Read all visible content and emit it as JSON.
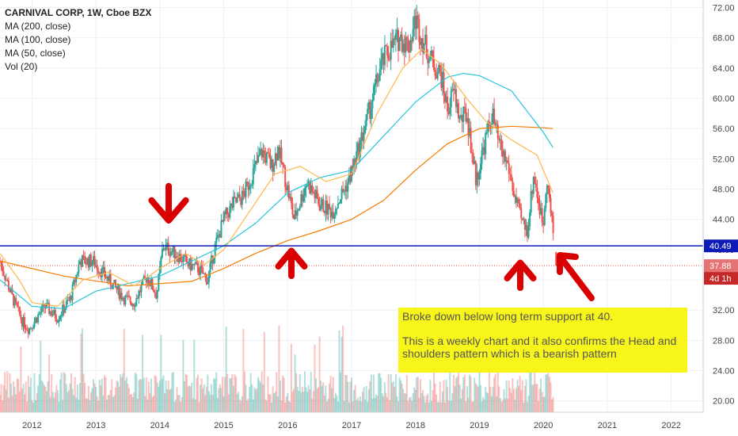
{
  "chart_data": {
    "type": "candlestick",
    "title": "CARNIVAL CORP, 1W, Cboe BZX",
    "indicators": [
      "MA (200, close)",
      "MA (100, close)",
      "MA (50, close)",
      "Vol (20)"
    ],
    "x_ticks": [
      "2012",
      "2013",
      "2014",
      "2015",
      "2016",
      "2017",
      "2018",
      "2019",
      "2020",
      "2021",
      "2022"
    ],
    "y_ticks": [
      20,
      24,
      28,
      32,
      36,
      40,
      44,
      48,
      52,
      56,
      60,
      64,
      68,
      72
    ],
    "ylim": [
      18.5,
      73
    ],
    "xlim": [
      2011.5,
      2022.5
    ],
    "grid": true,
    "support_level": 40.49,
    "last_price": 37.88,
    "countdown": "4d 1h",
    "price_path": [
      [
        2011.5,
        38.5
      ],
      [
        2011.7,
        33.5
      ],
      [
        2011.85,
        30.5
      ],
      [
        2011.95,
        29.5
      ],
      [
        2012.2,
        32.5
      ],
      [
        2012.4,
        31
      ],
      [
        2012.6,
        33.5
      ],
      [
        2012.75,
        38.5
      ],
      [
        2012.95,
        38.5
      ],
      [
        2013.2,
        36
      ],
      [
        2013.45,
        33.5
      ],
      [
        2013.6,
        33
      ],
      [
        2013.8,
        36.5
      ],
      [
        2013.95,
        34
      ],
      [
        2014.05,
        40.5
      ],
      [
        2014.25,
        39.5
      ],
      [
        2014.45,
        38
      ],
      [
        2014.6,
        37.5
      ],
      [
        2014.75,
        36
      ],
      [
        2014.85,
        40
      ],
      [
        2015.0,
        44
      ],
      [
        2015.15,
        46
      ],
      [
        2015.3,
        47
      ],
      [
        2015.45,
        50
      ],
      [
        2015.6,
        53
      ],
      [
        2015.75,
        51
      ],
      [
        2015.85,
        53.5
      ],
      [
        2016.0,
        48
      ],
      [
        2016.1,
        44
      ],
      [
        2016.3,
        49
      ],
      [
        2016.5,
        46
      ],
      [
        2016.7,
        45
      ],
      [
        2016.95,
        49
      ],
      [
        2017.1,
        53
      ],
      [
        2017.3,
        59
      ],
      [
        2017.45,
        64
      ],
      [
        2017.55,
        66
      ],
      [
        2017.75,
        68
      ],
      [
        2017.9,
        67
      ],
      [
        2018.0,
        70.5
      ],
      [
        2018.1,
        68
      ],
      [
        2018.25,
        65
      ],
      [
        2018.4,
        63
      ],
      [
        2018.5,
        58.5
      ],
      [
        2018.6,
        61
      ],
      [
        2018.7,
        57
      ],
      [
        2018.8,
        58
      ],
      [
        2018.95,
        49
      ],
      [
        2019.05,
        53
      ],
      [
        2019.2,
        58
      ],
      [
        2019.3,
        54
      ],
      [
        2019.45,
        51
      ],
      [
        2019.55,
        47
      ],
      [
        2019.65,
        44
      ],
      [
        2019.75,
        42.5
      ],
      [
        2019.85,
        50
      ],
      [
        2019.95,
        45
      ],
      [
        2020.0,
        43.5
      ],
      [
        2020.05,
        50
      ],
      [
        2020.12,
        44.5
      ],
      [
        2020.16,
        42
      ]
    ],
    "ma_200": [
      [
        2011.5,
        38.5
      ],
      [
        2012.5,
        36.5
      ],
      [
        2013.5,
        35.2
      ],
      [
        2014.5,
        35.8
      ],
      [
        2015.0,
        37.5
      ],
      [
        2015.5,
        39.5
      ],
      [
        2016.0,
        41.2
      ],
      [
        2016.5,
        42.5
      ],
      [
        2017.0,
        44
      ],
      [
        2017.5,
        46.5
      ],
      [
        2018.0,
        50.5
      ],
      [
        2018.5,
        54
      ],
      [
        2019.0,
        56
      ],
      [
        2019.5,
        56.3
      ],
      [
        2020.0,
        56.1
      ],
      [
        2020.15,
        56
      ]
    ],
    "ma_100": [
      [
        2011.5,
        36
      ],
      [
        2012.0,
        32.5
      ],
      [
        2012.5,
        32.2
      ],
      [
        2013.0,
        34.5
      ],
      [
        2013.5,
        35.5
      ],
      [
        2014.0,
        36.5
      ],
      [
        2014.5,
        38.5
      ],
      [
        2015.0,
        40.5
      ],
      [
        2015.5,
        43.5
      ],
      [
        2016.0,
        47.5
      ],
      [
        2016.5,
        49.5
      ],
      [
        2017.0,
        50.5
      ],
      [
        2017.5,
        55
      ],
      [
        2018.0,
        59.5
      ],
      [
        2018.5,
        62.8
      ],
      [
        2018.75,
        63.3
      ],
      [
        2019.0,
        63
      ],
      [
        2019.5,
        61
      ],
      [
        2020.0,
        55.5
      ],
      [
        2020.15,
        53.5
      ]
    ],
    "ma_50": [
      [
        2011.5,
        39.5
      ],
      [
        2011.8,
        36
      ],
      [
        2012.0,
        33
      ],
      [
        2012.4,
        32.5
      ],
      [
        2012.8,
        36
      ],
      [
        2013.2,
        37
      ],
      [
        2013.6,
        35.2
      ],
      [
        2014.0,
        37.5
      ],
      [
        2014.4,
        39.5
      ],
      [
        2014.7,
        38
      ],
      [
        2015.0,
        40
      ],
      [
        2015.4,
        45
      ],
      [
        2015.8,
        50
      ],
      [
        2016.2,
        51
      ],
      [
        2016.6,
        49
      ],
      [
        2017.0,
        50
      ],
      [
        2017.4,
        58
      ],
      [
        2017.8,
        64
      ],
      [
        2018.1,
        66.5
      ],
      [
        2018.4,
        64.5
      ],
      [
        2018.8,
        60
      ],
      [
        2019.1,
        57
      ],
      [
        2019.5,
        54.5
      ],
      [
        2019.9,
        52.5
      ],
      [
        2020.15,
        47.5
      ]
    ]
  },
  "labels": {
    "support_price": "40.49",
    "last_price": "37.88",
    "countdown": "4d 1h"
  },
  "note": {
    "line1": "Broke down below long term support at 40.",
    "line2": "This is a weekly chart and it also confirms the Head and shoulders pattern which is a bearish pattern"
  },
  "colors": {
    "up": "#26a69a",
    "down": "#ef5350",
    "ma200": "#f57c00",
    "ma100": "#26c6da",
    "ma50": "#ffb74d",
    "support": "#0d1bb8",
    "arrow": "#d80000",
    "price_tag": "#e57373"
  },
  "icons": [
    "arrow-down-icon",
    "arrow-up-icon",
    "arrow-up-icon",
    "arrow-diagonal-icon"
  ]
}
